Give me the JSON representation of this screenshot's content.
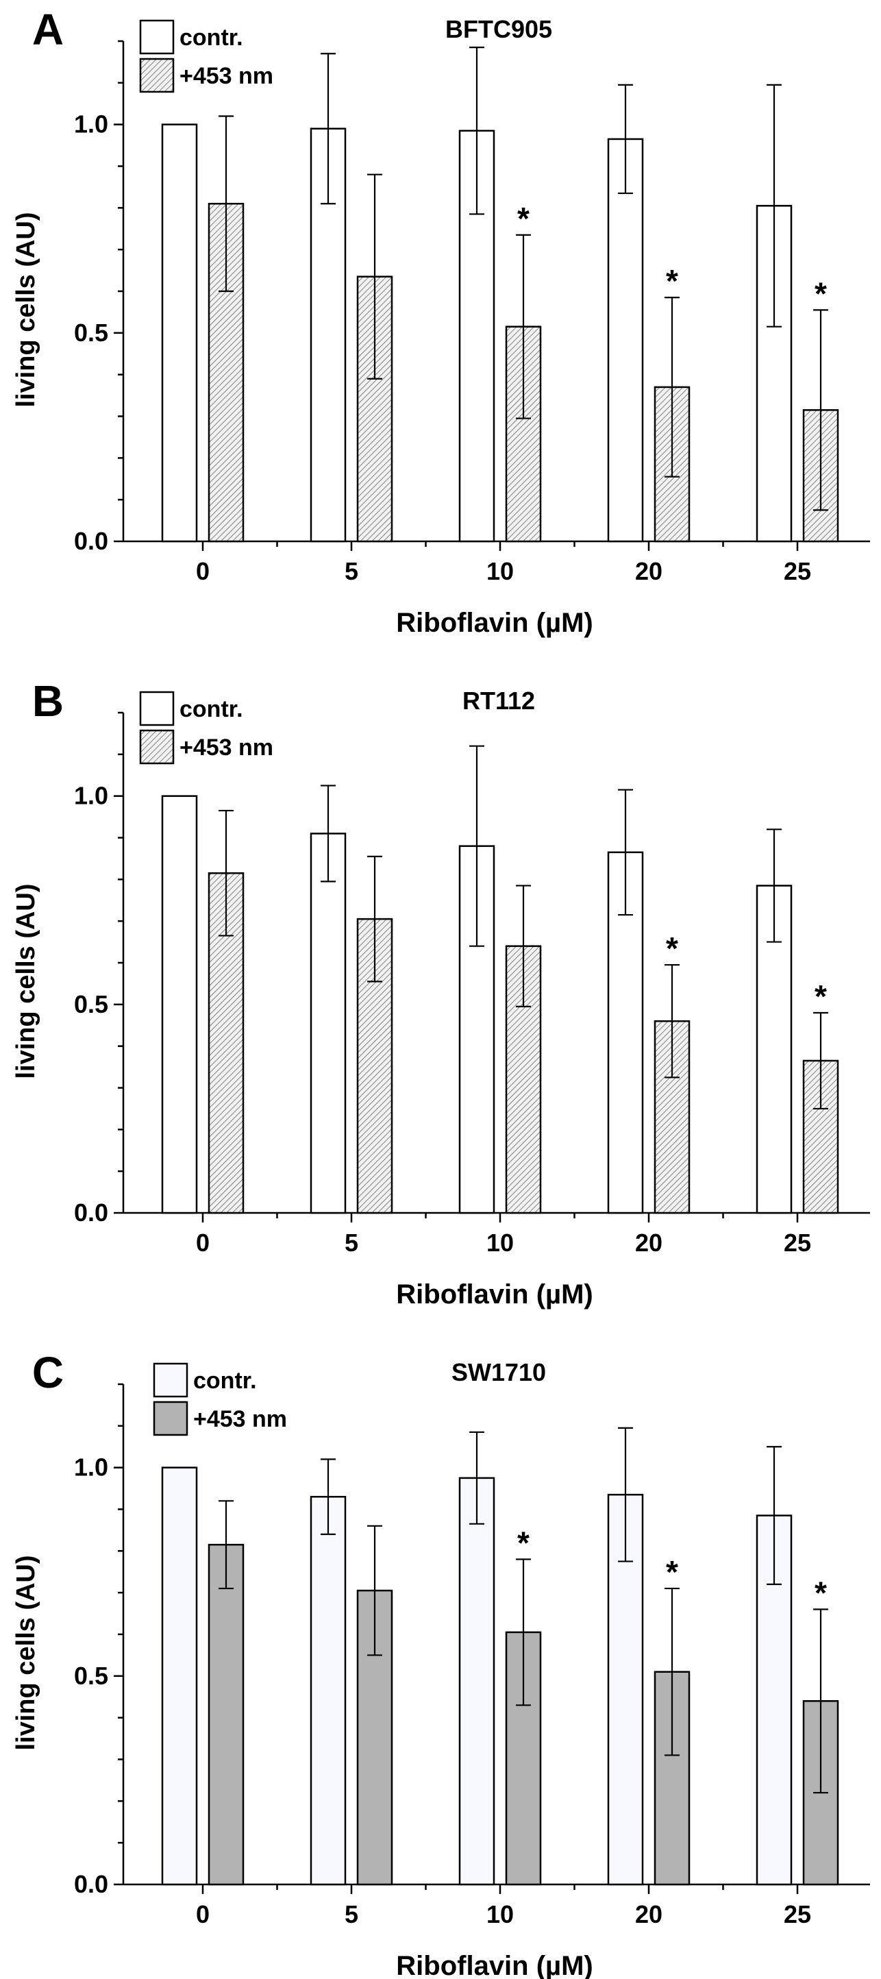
{
  "chart_data": [
    {
      "panel_letter": "A",
      "type": "bar",
      "title": "BFTC905",
      "xlabel": "Riboflavin (µM)",
      "ylabel": "living cells (AU)",
      "ylim": [
        0,
        1.2
      ],
      "yticks": [
        "0.0",
        "0.5",
        "1.0"
      ],
      "categories": [
        "0",
        "5",
        "10",
        "20",
        "25"
      ],
      "series": [
        {
          "name": "contr.",
          "fill": "#ffffff",
          "hatched": false,
          "values": [
            1.0,
            0.99,
            0.985,
            0.965,
            0.805
          ],
          "errors": [
            0,
            0.18,
            0.2,
            0.13,
            0.29
          ],
          "significant": [
            false,
            false,
            false,
            false,
            false
          ]
        },
        {
          "name": "+453 nm",
          "fill": "#b3b3b3",
          "hatched": true,
          "values": [
            0.81,
            0.635,
            0.515,
            0.37,
            0.315
          ],
          "errors": [
            0.21,
            0.245,
            0.22,
            0.215,
            0.24
          ],
          "significant": [
            false,
            false,
            true,
            true,
            true
          ]
        }
      ],
      "significance_marker": "*"
    },
    {
      "panel_letter": "B",
      "type": "bar",
      "title": "RT112",
      "xlabel": "Riboflavin (µM)",
      "ylabel": "living cells (AU)",
      "ylim": [
        0,
        1.2
      ],
      "yticks": [
        "0.0",
        "0.5",
        "1.0"
      ],
      "categories": [
        "0",
        "5",
        "10",
        "20",
        "25"
      ],
      "series": [
        {
          "name": "contr.",
          "fill": "#ffffff",
          "hatched": false,
          "values": [
            1.0,
            0.91,
            0.88,
            0.865,
            0.785
          ],
          "errors": [
            0,
            0.115,
            0.24,
            0.15,
            0.135
          ],
          "significant": [
            false,
            false,
            false,
            false,
            false
          ]
        },
        {
          "name": "+453 nm",
          "fill": "#b3b3b3",
          "hatched": true,
          "values": [
            0.815,
            0.705,
            0.64,
            0.46,
            0.365
          ],
          "errors": [
            0.15,
            0.15,
            0.145,
            0.135,
            0.115
          ],
          "significant": [
            false,
            false,
            false,
            true,
            true
          ]
        }
      ],
      "significance_marker": "*"
    },
    {
      "panel_letter": "C",
      "type": "bar",
      "title": "SW1710",
      "xlabel": "Riboflavin (µM)",
      "ylabel": "living cells (AU)",
      "ylim": [
        0,
        1.2
      ],
      "yticks": [
        "0.0",
        "0.5",
        "1.0"
      ],
      "categories": [
        "0",
        "5",
        "10",
        "20",
        "25"
      ],
      "series": [
        {
          "name": "contr.",
          "fill": "#f8f8ff",
          "hatched": false,
          "values": [
            1.0,
            0.93,
            0.975,
            0.935,
            0.885
          ],
          "errors": [
            0,
            0.09,
            0.11,
            0.16,
            0.165
          ],
          "significant": [
            false,
            false,
            false,
            false,
            false
          ]
        },
        {
          "name": "+453 nm",
          "fill": "#b3b3b3",
          "hatched": false,
          "values": [
            0.815,
            0.705,
            0.605,
            0.51,
            0.44
          ],
          "errors": [
            0.105,
            0.155,
            0.175,
            0.2,
            0.22
          ],
          "significant": [
            false,
            false,
            true,
            true,
            true
          ]
        }
      ],
      "significance_marker": "*"
    }
  ]
}
